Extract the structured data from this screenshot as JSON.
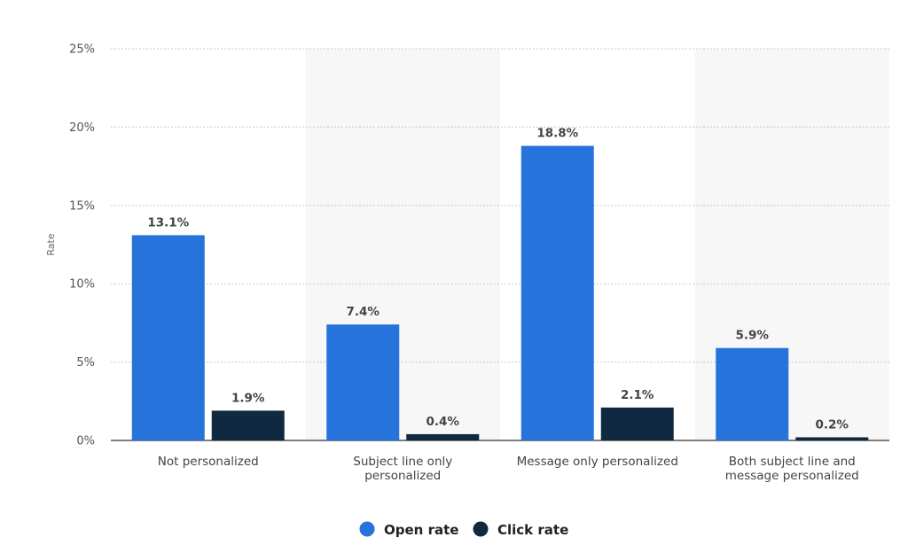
{
  "chart_data": {
    "type": "bar",
    "categories": [
      [
        "Not personalized"
      ],
      [
        "Subject line only",
        "personalized"
      ],
      [
        "Message only personalized"
      ],
      [
        "Both subject line and",
        "message personalized"
      ]
    ],
    "series": [
      {
        "name": "Open rate",
        "values": [
          13.1,
          7.4,
          18.8,
          5.9
        ],
        "labels": [
          "13.1%",
          "7.4%",
          "18.8%",
          "5.9%"
        ],
        "color": "#2673dc"
      },
      {
        "name": "Click rate",
        "values": [
          1.9,
          0.4,
          2.1,
          0.2
        ],
        "labels": [
          "1.9%",
          "0.4%",
          "2.1%",
          "0.2%"
        ],
        "color": "#0f2a40"
      }
    ],
    "ylabel": "Rate",
    "ylim": [
      0,
      25
    ],
    "yticks": [
      0,
      5,
      10,
      15,
      20,
      25
    ],
    "ytick_labels": [
      "0%",
      "5%",
      "10%",
      "15%",
      "20%",
      "25%"
    ],
    "grid": true,
    "alternate_band_color": "#f7f7f8",
    "legend_position": "bottom-center"
  }
}
